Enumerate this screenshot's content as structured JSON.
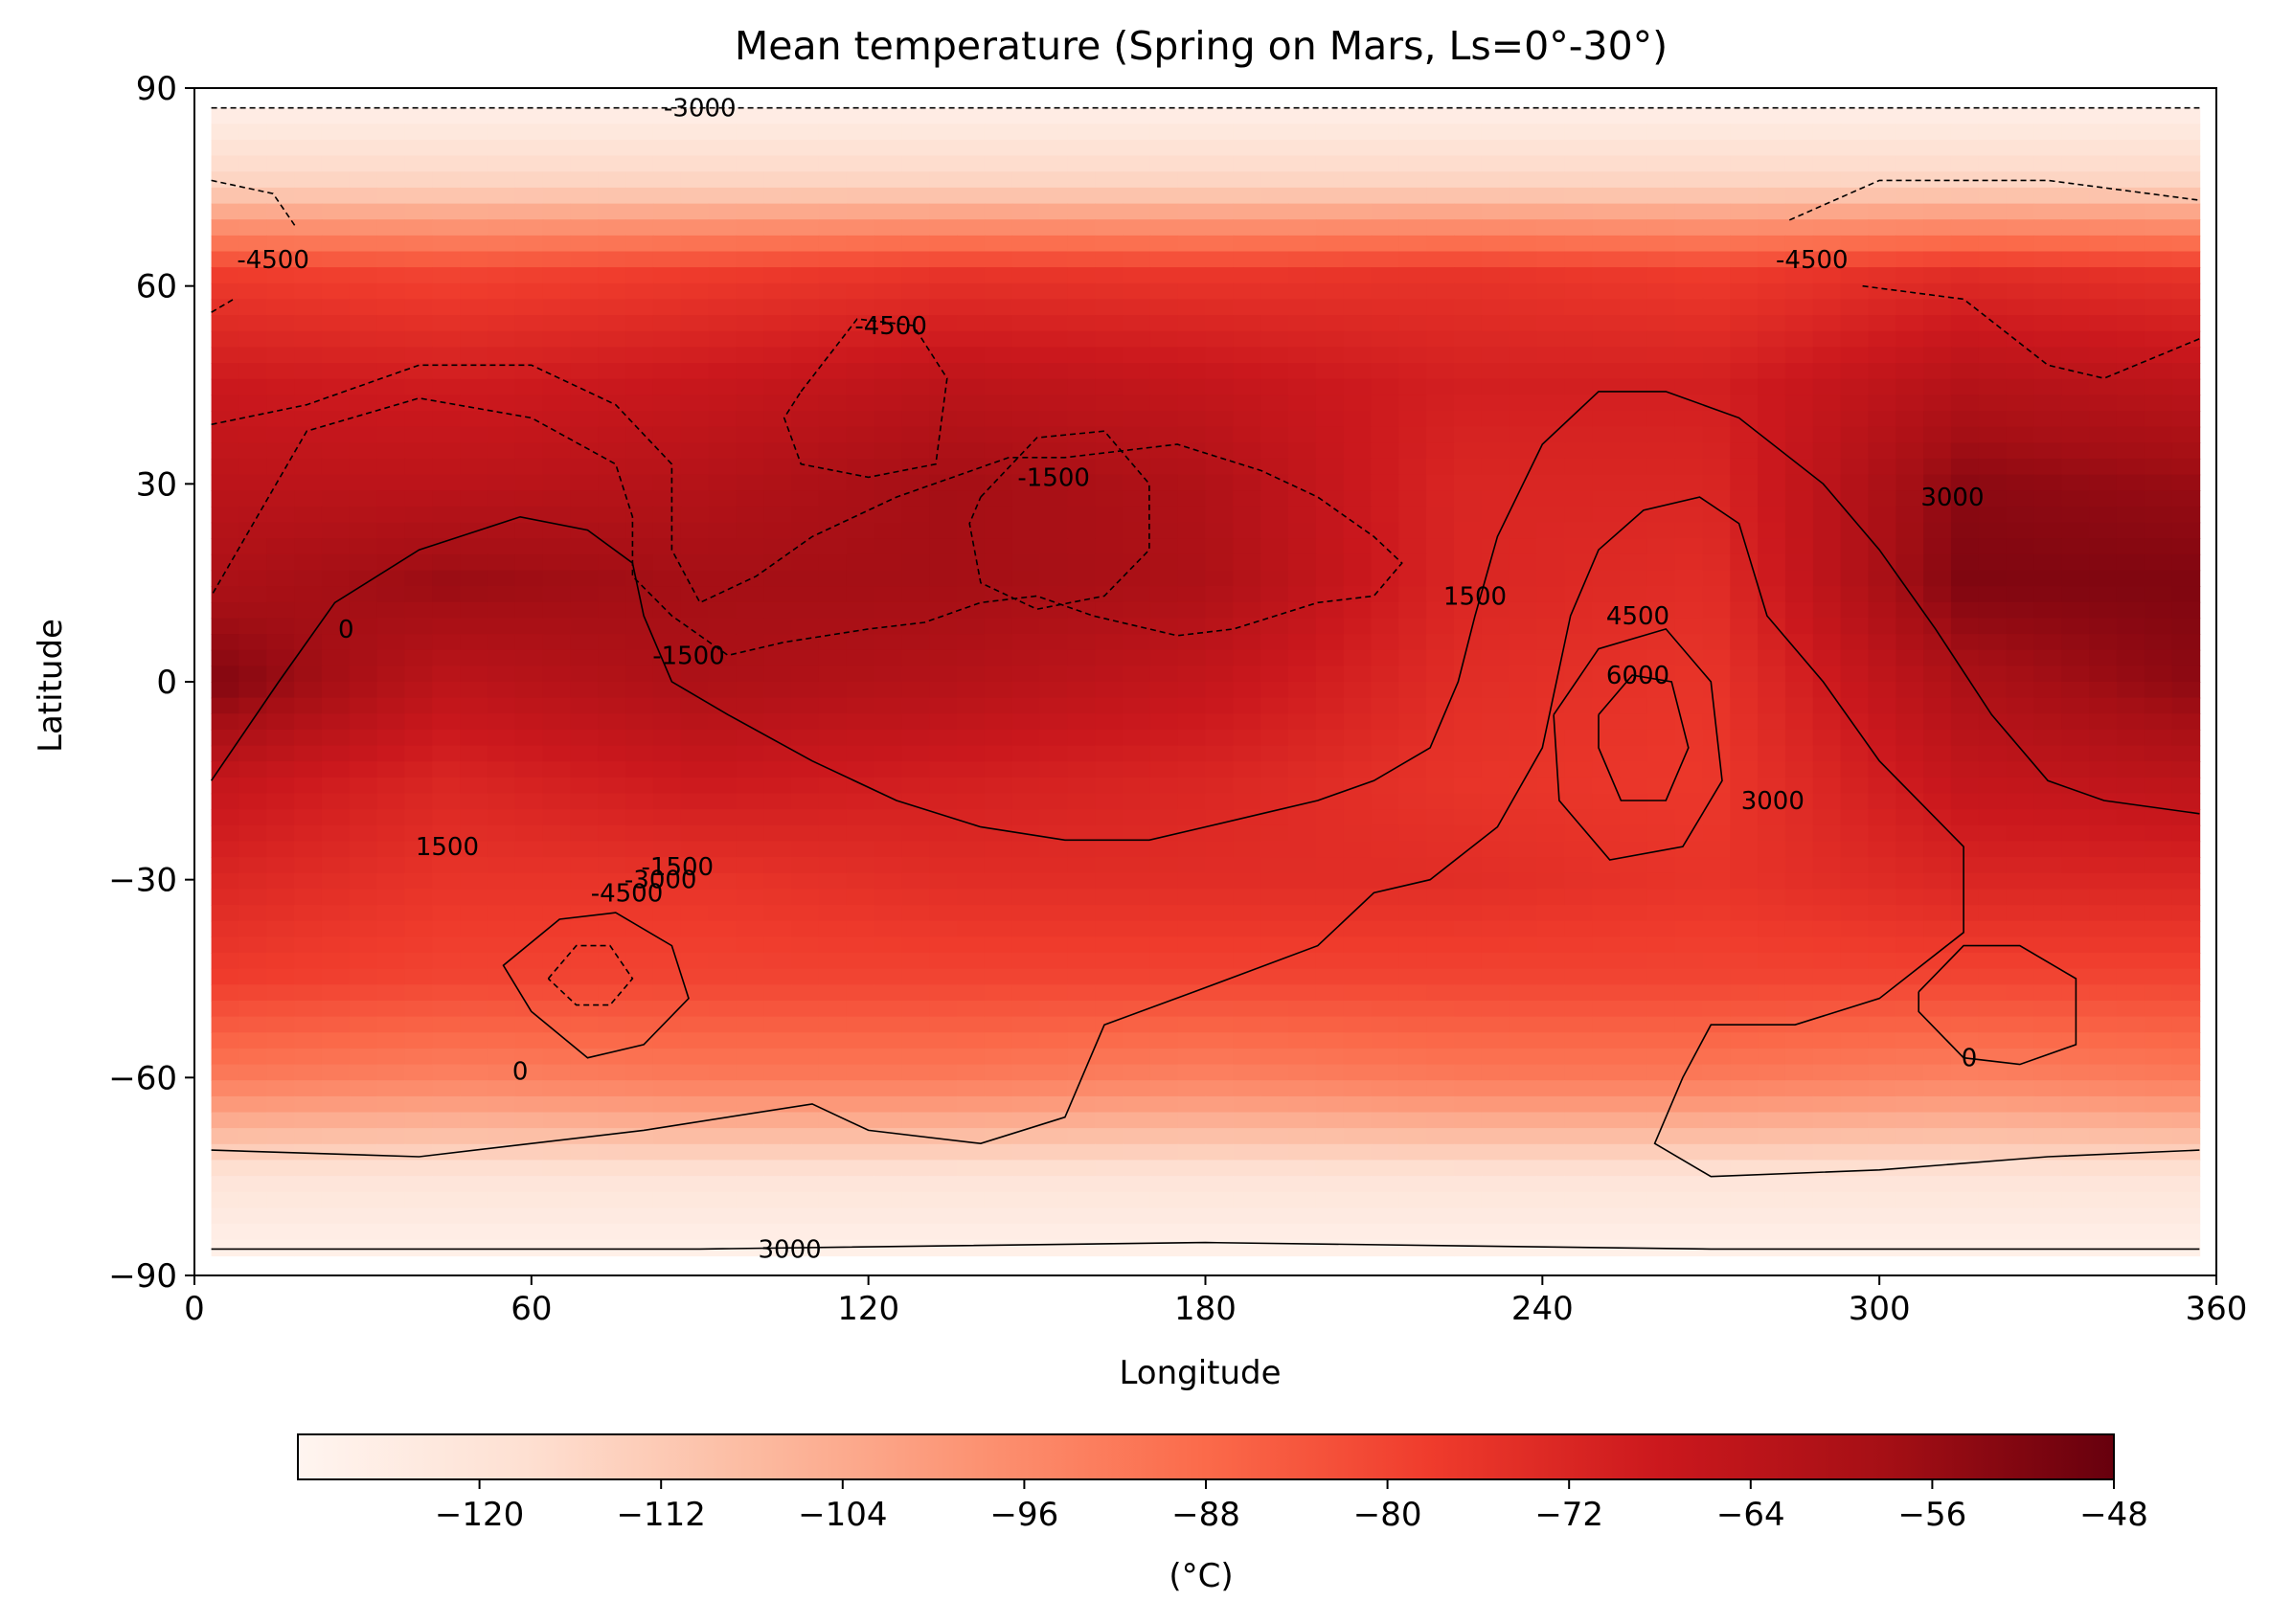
{
  "chart_data": {
    "type": "heatmap",
    "title": "Mean temperature (Spring on Mars, Ls=0°-30°)",
    "xlabel": "Longitude",
    "ylabel": "Latitude",
    "xlim": [
      0,
      360
    ],
    "ylim": [
      -90,
      90
    ],
    "xticks": [
      0,
      60,
      120,
      180,
      240,
      300,
      360
    ],
    "xtick_labels": [
      "0",
      "60",
      "120",
      "180",
      "240",
      "300",
      "360"
    ],
    "yticks": [
      90,
      60,
      30,
      0,
      -30,
      -60,
      -90
    ],
    "ytick_labels": [
      "90",
      "60",
      "30",
      "0",
      "−30",
      "−60",
      "−90"
    ],
    "grid": false,
    "colormap": "Reds",
    "colorbar": {
      "orientation": "horizontal",
      "label": "(°C)",
      "range": [
        -128,
        -48
      ],
      "ticks": [
        -120,
        -112,
        -104,
        -96,
        -88,
        -80,
        -72,
        -64,
        -56,
        -48
      ],
      "tick_labels": [
        "−120",
        "−112",
        "−104",
        "−96",
        "−88",
        "−80",
        "−72",
        "−64",
        "−56",
        "−48"
      ],
      "colors": [
        "#fff5f0",
        "#fee0d2",
        "#fcbba1",
        "#fc9272",
        "#fb6a4a",
        "#ef3b2c",
        "#cb181d",
        "#a50f15",
        "#67000d"
      ]
    },
    "temperature_field": {
      "lon": [
        3,
        45,
        90,
        135,
        180,
        225,
        270,
        315,
        357
      ],
      "lat": [
        87,
        75,
        62,
        45,
        30,
        15,
        0,
        -15,
        -30,
        -45,
        -60,
        -75,
        -87
      ],
      "values": [
        [
          -125,
          -125,
          -125,
          -125,
          -125,
          -125,
          -125,
          -125,
          -125
        ],
        [
          -114,
          -114,
          -114,
          -114,
          -114,
          -114,
          -114,
          -114,
          -114
        ],
        [
          -78,
          -80,
          -78,
          -76,
          -77,
          -76,
          -78,
          -74,
          -76
        ],
        [
          -68,
          -69,
          -67,
          -64,
          -66,
          -70,
          -70,
          -62,
          -64
        ],
        [
          -64,
          -64,
          -62,
          -58,
          -61,
          -72,
          -72,
          -54,
          -56
        ],
        [
          -60,
          -56,
          -58,
          -58,
          -60,
          -72,
          -74,
          -52,
          -52
        ],
        [
          -52,
          -64,
          -60,
          -62,
          -66,
          -74,
          -76,
          -60,
          -54
        ],
        [
          -66,
          -72,
          -68,
          -70,
          -72,
          -76,
          -77,
          -66,
          -64
        ],
        [
          -72,
          -76,
          -76,
          -74,
          -74,
          -74,
          -76,
          -72,
          -72
        ],
        [
          -78,
          -80,
          -80,
          -80,
          -80,
          -80,
          -80,
          -80,
          -80
        ],
        [
          -92,
          -94,
          -92,
          -92,
          -94,
          -92,
          -92,
          -94,
          -92
        ],
        [
          -120,
          -120,
          -120,
          -120,
          -120,
          -120,
          -120,
          -120,
          -120
        ],
        [
          -126,
          -126,
          -126,
          -126,
          -126,
          -126,
          -126,
          -126,
          -126
        ]
      ]
    },
    "contour_labels": [
      {
        "text": "-3000",
        "lon": 90,
        "lat": 87
      },
      {
        "text": "-4500",
        "lon": 14,
        "lat": 64
      },
      {
        "text": "-4500",
        "lon": 124,
        "lat": 54
      },
      {
        "text": "-4500",
        "lon": 288,
        "lat": 64
      },
      {
        "text": "-1500",
        "lon": 153,
        "lat": 31
      },
      {
        "text": "-1500",
        "lon": 88,
        "lat": 4
      },
      {
        "text": "0",
        "lon": 27,
        "lat": 8
      },
      {
        "text": "1500",
        "lon": 228,
        "lat": 13
      },
      {
        "text": "4500",
        "lon": 257,
        "lat": 10
      },
      {
        "text": "6000",
        "lon": 257,
        "lat": 1
      },
      {
        "text": "3000",
        "lon": 281,
        "lat": -18
      },
      {
        "text": "3000",
        "lon": 313,
        "lat": 28
      },
      {
        "text": "1500",
        "lon": 45,
        "lat": -25
      },
      {
        "text": "-1500",
        "lon": 86,
        "lat": -28
      },
      {
        "text": "-3000",
        "lon": 83,
        "lat": -30
      },
      {
        "text": "-4500",
        "lon": 77,
        "lat": -32
      },
      {
        "text": "0",
        "lon": 58,
        "lat": -59
      },
      {
        "text": "0",
        "lon": 316,
        "lat": -57
      },
      {
        "text": "3000",
        "lon": 106,
        "lat": -86
      }
    ],
    "contours": [
      {
        "dashed": true,
        "points": [
          [
            3,
            87
          ],
          [
            357,
            87
          ]
        ]
      },
      {
        "dashed": false,
        "points": [
          [
            3,
            -86
          ],
          [
            90,
            -86
          ],
          [
            180,
            -85
          ],
          [
            270,
            -86
          ],
          [
            357,
            -86
          ]
        ]
      },
      {
        "dashed": true,
        "points": [
          [
            3,
            76
          ],
          [
            14,
            74
          ],
          [
            18,
            69
          ]
        ]
      },
      {
        "dashed": true,
        "points": [
          [
            3,
            56
          ],
          [
            7,
            58
          ]
        ]
      },
      {
        "dashed": true,
        "points": [
          [
            284,
            70
          ],
          [
            300,
            76
          ],
          [
            330,
            76
          ],
          [
            357,
            73
          ]
        ]
      },
      {
        "dashed": true,
        "points": [
          [
            297,
            60
          ],
          [
            315,
            58
          ],
          [
            330,
            48
          ],
          [
            340,
            46
          ],
          [
            357,
            52
          ]
        ]
      },
      {
        "dashed": true,
        "points": [
          [
            108,
            44
          ],
          [
            118,
            55
          ],
          [
            128,
            54
          ],
          [
            134,
            46
          ],
          [
            132,
            33
          ],
          [
            120,
            31
          ],
          [
            108,
            33
          ],
          [
            105,
            40
          ],
          [
            108,
            44
          ]
        ]
      },
      {
        "dashed": true,
        "points": [
          [
            140,
            28
          ],
          [
            150,
            37
          ],
          [
            162,
            38
          ],
          [
            170,
            30
          ],
          [
            170,
            20
          ],
          [
            162,
            13
          ],
          [
            150,
            11
          ],
          [
            140,
            15
          ],
          [
            138,
            24
          ],
          [
            140,
            28
          ]
        ]
      },
      {
        "dashed": true,
        "points": [
          [
            3,
            39
          ],
          [
            20,
            42
          ],
          [
            40,
            48
          ],
          [
            60,
            48
          ],
          [
            75,
            42
          ],
          [
            85,
            33
          ],
          [
            85,
            20
          ],
          [
            90,
            12
          ],
          [
            100,
            16
          ],
          [
            110,
            22
          ],
          [
            125,
            28
          ],
          [
            145,
            34
          ],
          [
            155,
            34
          ],
          [
            175,
            36
          ],
          [
            190,
            32
          ],
          [
            200,
            28
          ],
          [
            210,
            22
          ],
          [
            215,
            18
          ],
          [
            210,
            13
          ],
          [
            200,
            12
          ],
          [
            185,
            8
          ],
          [
            175,
            7
          ],
          [
            160,
            10
          ],
          [
            150,
            13
          ],
          [
            140,
            12
          ],
          [
            130,
            9
          ],
          [
            120,
            8
          ],
          [
            105,
            6
          ],
          [
            95,
            4
          ],
          [
            85,
            10
          ],
          [
            78,
            16
          ],
          [
            78,
            25
          ],
          [
            75,
            33
          ],
          [
            60,
            40
          ],
          [
            40,
            43
          ],
          [
            20,
            38
          ],
          [
            3,
            13
          ]
        ]
      },
      {
        "dashed": false,
        "points": [
          [
            3,
            -15
          ],
          [
            15,
            0
          ],
          [
            25,
            12
          ],
          [
            40,
            20
          ],
          [
            58,
            25
          ],
          [
            70,
            23
          ],
          [
            78,
            18
          ],
          [
            80,
            10
          ],
          [
            85,
            0
          ],
          [
            95,
            -5
          ],
          [
            110,
            -12
          ],
          [
            125,
            -18
          ],
          [
            140,
            -22
          ],
          [
            155,
            -24
          ],
          [
            170,
            -24
          ],
          [
            180,
            -22
          ],
          [
            190,
            -20
          ],
          [
            200,
            -18
          ],
          [
            210,
            -15
          ],
          [
            220,
            -10
          ],
          [
            225,
            0
          ],
          [
            228,
            10
          ],
          [
            232,
            22
          ],
          [
            240,
            36
          ],
          [
            250,
            44
          ],
          [
            262,
            44
          ],
          [
            275,
            40
          ],
          [
            290,
            30
          ],
          [
            300,
            20
          ],
          [
            310,
            8
          ],
          [
            320,
            -5
          ],
          [
            330,
            -15
          ],
          [
            340,
            -18
          ],
          [
            357,
            -20
          ]
        ]
      },
      {
        "dashed": false,
        "points": [
          [
            60,
            -50
          ],
          [
            55,
            -43
          ],
          [
            65,
            -36
          ],
          [
            75,
            -35
          ],
          [
            85,
            -40
          ],
          [
            88,
            -48
          ],
          [
            80,
            -55
          ],
          [
            70,
            -57
          ],
          [
            60,
            -50
          ]
        ]
      },
      {
        "dashed": true,
        "points": [
          [
            63,
            -45
          ],
          [
            68,
            -40
          ],
          [
            74,
            -40
          ],
          [
            78,
            -45
          ],
          [
            74,
            -49
          ],
          [
            68,
            -49
          ],
          [
            63,
            -45
          ]
        ]
      },
      {
        "dashed": false,
        "points": [
          [
            242,
            -5
          ],
          [
            250,
            5
          ],
          [
            262,
            8
          ],
          [
            270,
            0
          ],
          [
            272,
            -15
          ],
          [
            265,
            -25
          ],
          [
            252,
            -27
          ],
          [
            243,
            -18
          ],
          [
            242,
            -5
          ]
        ]
      },
      {
        "dashed": false,
        "points": [
          [
            250,
            -5
          ],
          [
            256,
            1
          ],
          [
            263,
            0
          ],
          [
            266,
            -10
          ],
          [
            262,
            -18
          ],
          [
            254,
            -18
          ],
          [
            250,
            -10
          ],
          [
            250,
            -5
          ]
        ]
      },
      {
        "dashed": false,
        "points": [
          [
            307,
            -47
          ],
          [
            315,
            -40
          ],
          [
            325,
            -40
          ],
          [
            335,
            -45
          ],
          [
            335,
            -55
          ],
          [
            325,
            -58
          ],
          [
            315,
            -57
          ],
          [
            307,
            -50
          ],
          [
            307,
            -47
          ]
        ]
      },
      {
        "dashed": false,
        "points": [
          [
            3,
            -71
          ],
          [
            40,
            -72
          ],
          [
            80,
            -68
          ],
          [
            110,
            -64
          ],
          [
            120,
            -68
          ],
          [
            140,
            -70
          ],
          [
            155,
            -66
          ],
          [
            162,
            -52
          ],
          [
            178,
            -47
          ],
          [
            200,
            -40
          ],
          [
            210,
            -32
          ],
          [
            220,
            -30
          ],
          [
            232,
            -22
          ],
          [
            240,
            -10
          ],
          [
            245,
            10
          ],
          [
            250,
            20
          ],
          [
            258,
            26
          ],
          [
            268,
            28
          ],
          [
            275,
            24
          ],
          [
            280,
            10
          ],
          [
            290,
            0
          ],
          [
            300,
            -12
          ],
          [
            315,
            -25
          ],
          [
            315,
            -38
          ],
          [
            300,
            -48
          ],
          [
            285,
            -52
          ],
          [
            270,
            -52
          ],
          [
            265,
            -60
          ],
          [
            260,
            -70
          ],
          [
            270,
            -75
          ],
          [
            300,
            -74
          ],
          [
            330,
            -72
          ],
          [
            357,
            -71
          ]
        ]
      }
    ]
  }
}
